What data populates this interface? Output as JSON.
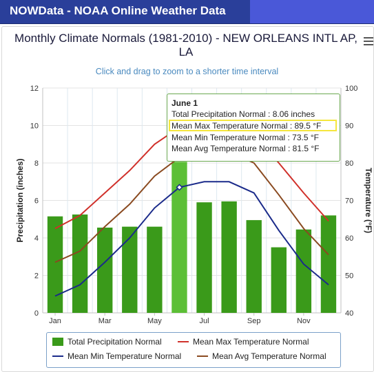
{
  "window": {
    "title": "NOWData - NOAA Online Weather Data"
  },
  "chart_title": "Monthly Climate Normals (1981-2010) - NEW ORLEANS INTL AP, LA",
  "zoom_hint": "Click and drag to zoom to a shorter time interval",
  "tooltip": {
    "header": "June 1",
    "lines": [
      "Total Precipitation Normal : 8.06 inches",
      "Mean Max Temperature Normal : 89.5 °F",
      "Mean Min Temperature Normal : 73.5 °F",
      "Mean Avg Temperature Normal : 81.5 °F"
    ]
  },
  "legend": [
    {
      "label": "Total Precipitation Normal",
      "color": "#3a9a1a",
      "kind": "box"
    },
    {
      "label": "Mean Max Temperature Normal",
      "color": "#d0302a",
      "kind": "line"
    },
    {
      "label": "Mean Min Temperature Normal",
      "color": "#1a2a8a",
      "kind": "line"
    },
    {
      "label": "Mean Avg Temperature Normal",
      "color": "#8a4a20",
      "kind": "line"
    }
  ],
  "chart_data": {
    "type": "bar",
    "title": "Monthly Climate Normals (1981-2010) - NEW ORLEANS INTL AP, LA",
    "categories": [
      "Jan",
      "Feb",
      "Mar",
      "Apr",
      "May",
      "Jun",
      "Jul",
      "Aug",
      "Sep",
      "Oct",
      "Nov",
      "Dec"
    ],
    "x_tick_labels": [
      "Jan",
      "Mar",
      "May",
      "Jul",
      "Sep",
      "Nov"
    ],
    "ylabel_left": "Precipitation (inches)",
    "ylabel_right": "Temperature (°F)",
    "ylim_left": [
      0,
      12
    ],
    "ylim_right": [
      40,
      100
    ],
    "y_ticks_left": [
      "0",
      "2",
      "4",
      "6",
      "8",
      "10",
      "12"
    ],
    "y_ticks_right": [
      "40",
      "50",
      "60",
      "70",
      "80",
      "90",
      "100"
    ],
    "grid": true,
    "series": [
      {
        "name": "Total Precipitation Normal",
        "axis": "left",
        "kind": "bar",
        "color": "#3a9a1a",
        "values": [
          5.15,
          5.25,
          4.55,
          4.6,
          4.6,
          8.06,
          5.9,
          5.95,
          4.95,
          3.5,
          4.45,
          5.2
        ]
      },
      {
        "name": "Mean Max Temperature Normal",
        "axis": "right",
        "kind": "line",
        "color": "#d0302a",
        "values": [
          62.5,
          66.0,
          72.0,
          78.0,
          85.0,
          89.5,
          91.0,
          91.0,
          87.5,
          80.0,
          72.0,
          64.5
        ]
      },
      {
        "name": "Mean Min Temperature Normal",
        "axis": "right",
        "kind": "line",
        "color": "#1a2a8a",
        "values": [
          44.5,
          47.5,
          53.5,
          60.0,
          68.0,
          73.5,
          75.0,
          75.0,
          72.0,
          62.0,
          53.0,
          47.5
        ]
      },
      {
        "name": "Mean Avg Temperature Normal",
        "axis": "right",
        "kind": "line",
        "color": "#8a4a20",
        "values": [
          53.5,
          56.5,
          63.0,
          69.0,
          76.5,
          81.5,
          83.0,
          83.0,
          80.0,
          71.5,
          62.5,
          55.5
        ]
      }
    ],
    "highlighted_category": "Jun",
    "legend_position": "bottom"
  }
}
